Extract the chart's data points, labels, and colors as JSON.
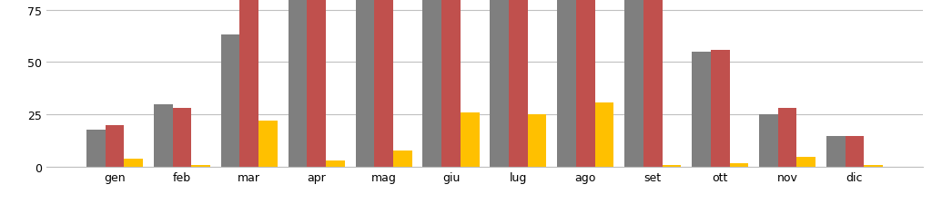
{
  "categories": [
    "gen",
    "feb",
    "mar",
    "apr",
    "mag",
    "giu",
    "lug",
    "ago",
    "set",
    "ott",
    "nov",
    "dic"
  ],
  "series1": [
    18,
    30,
    63,
    80,
    80,
    80,
    80,
    80,
    80,
    55,
    25,
    15
  ],
  "series2": [
    20,
    28,
    80,
    80,
    80,
    80,
    80,
    80,
    80,
    56,
    28,
    15
  ],
  "series3": [
    4,
    1,
    22,
    3,
    8,
    26,
    25,
    31,
    1,
    2,
    5,
    1
  ],
  "color1": "#7f7f7f",
  "color2": "#c0504d",
  "color3": "#ffc000",
  "ylim": [
    0,
    80
  ],
  "yticks": [
    0,
    25,
    50,
    75
  ],
  "bar_width": 0.28,
  "background_color": "#ffffff",
  "grid_color": "#c0c0c0"
}
